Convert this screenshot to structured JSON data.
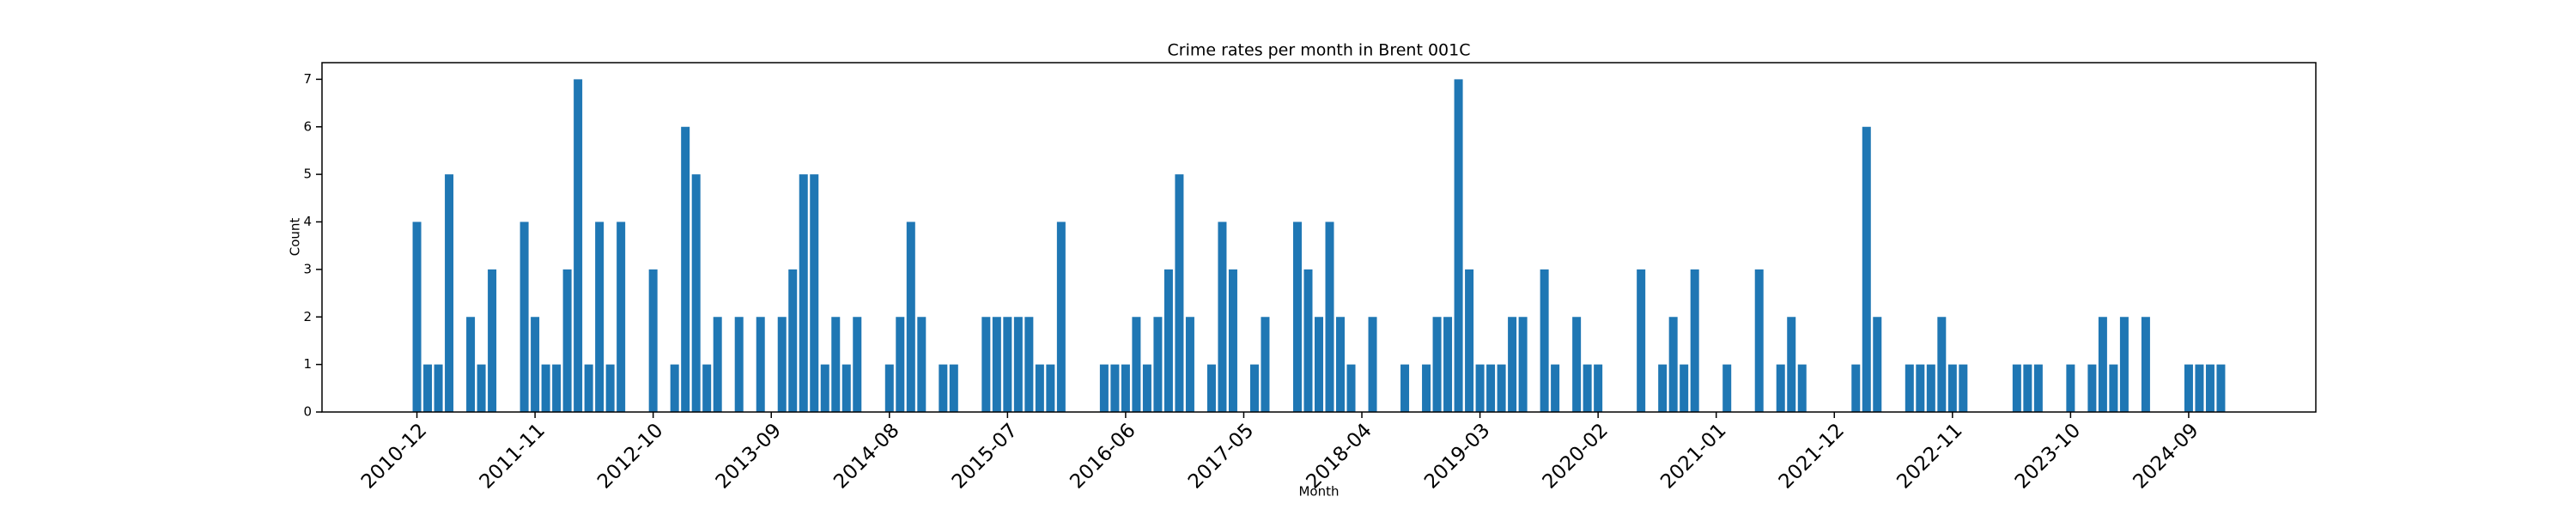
{
  "chart_data": {
    "type": "bar",
    "title": "Crime rates per month in Brent 001C",
    "x_label": "Month",
    "y_label": "Count",
    "color": "#1f77b4",
    "categories": [
      "2010-12",
      null,
      null,
      null,
      null,
      null,
      null,
      null,
      null,
      null,
      null,
      "2011-11",
      null,
      null,
      null,
      null,
      null,
      null,
      null,
      null,
      null,
      null,
      "2012-10",
      null,
      null,
      null,
      null,
      null,
      null,
      null,
      null,
      null,
      null,
      "2013-09",
      null,
      null,
      null,
      null,
      null,
      null,
      null,
      null,
      null,
      null,
      "2014-08",
      null,
      null,
      null,
      null,
      null,
      null,
      null,
      null,
      null,
      null,
      "2015-07",
      null,
      null,
      null,
      null,
      null,
      null,
      null,
      null,
      null,
      null,
      "2016-06",
      null,
      null,
      null,
      null,
      null,
      null,
      null,
      null,
      null,
      null,
      "2017-05",
      null,
      null,
      null,
      null,
      null,
      null,
      null,
      null,
      null,
      null,
      "2018-04",
      null,
      null,
      null,
      null,
      null,
      null,
      null,
      null,
      null,
      null,
      "2019-03",
      null,
      null,
      null,
      null,
      null,
      null,
      null,
      null,
      null,
      null,
      "2020-02",
      null,
      null,
      null,
      null,
      null,
      null,
      null,
      null,
      null,
      null,
      "2021-01",
      null,
      null,
      null,
      null,
      null,
      null,
      null,
      null,
      null,
      null,
      "2021-12",
      null,
      null,
      null,
      null,
      null,
      null,
      null,
      null,
      null,
      null,
      "2022-11",
      null,
      null,
      null,
      null,
      null,
      null,
      null,
      null,
      null,
      null,
      "2023-10",
      null,
      null,
      null,
      null,
      null,
      null,
      null,
      null,
      null,
      null,
      "2024-09",
      null,
      null,
      null
    ],
    "values": [
      4,
      1,
      1,
      5,
      0,
      2,
      1,
      3,
      0,
      0,
      4,
      2,
      1,
      1,
      3,
      7,
      1,
      4,
      1,
      4,
      0,
      0,
      3,
      0,
      1,
      6,
      5,
      1,
      2,
      0,
      2,
      0,
      2,
      0,
      2,
      3,
      5,
      5,
      1,
      2,
      1,
      2,
      0,
      0,
      1,
      2,
      4,
      2,
      0,
      1,
      1,
      0,
      0,
      2,
      2,
      2,
      2,
      2,
      1,
      1,
      4,
      0,
      0,
      0,
      1,
      1,
      1,
      2,
      1,
      2,
      3,
      5,
      2,
      0,
      1,
      4,
      3,
      0,
      1,
      2,
      0,
      0,
      4,
      3,
      2,
      4,
      2,
      1,
      0,
      2,
      0,
      0,
      1,
      0,
      1,
      2,
      2,
      7,
      3,
      1,
      1,
      1,
      2,
      2,
      0,
      3,
      1,
      0,
      2,
      1,
      1,
      0,
      0,
      0,
      3,
      0,
      1,
      2,
      1,
      3,
      0,
      0,
      1,
      0,
      0,
      3,
      0,
      1,
      2,
      1,
      0,
      0,
      0,
      0,
      1,
      6,
      2,
      0,
      0,
      1,
      1,
      1,
      2,
      1,
      1,
      0,
      0,
      0,
      0,
      1,
      1,
      1,
      0,
      0,
      1,
      0,
      1,
      2,
      1,
      2,
      0,
      2,
      0,
      0,
      0,
      1,
      1,
      1,
      1
    ],
    "ylim": [
      0,
      7.35
    ],
    "yticks": [
      0,
      1,
      2,
      3,
      4,
      5,
      6,
      7
    ]
  }
}
